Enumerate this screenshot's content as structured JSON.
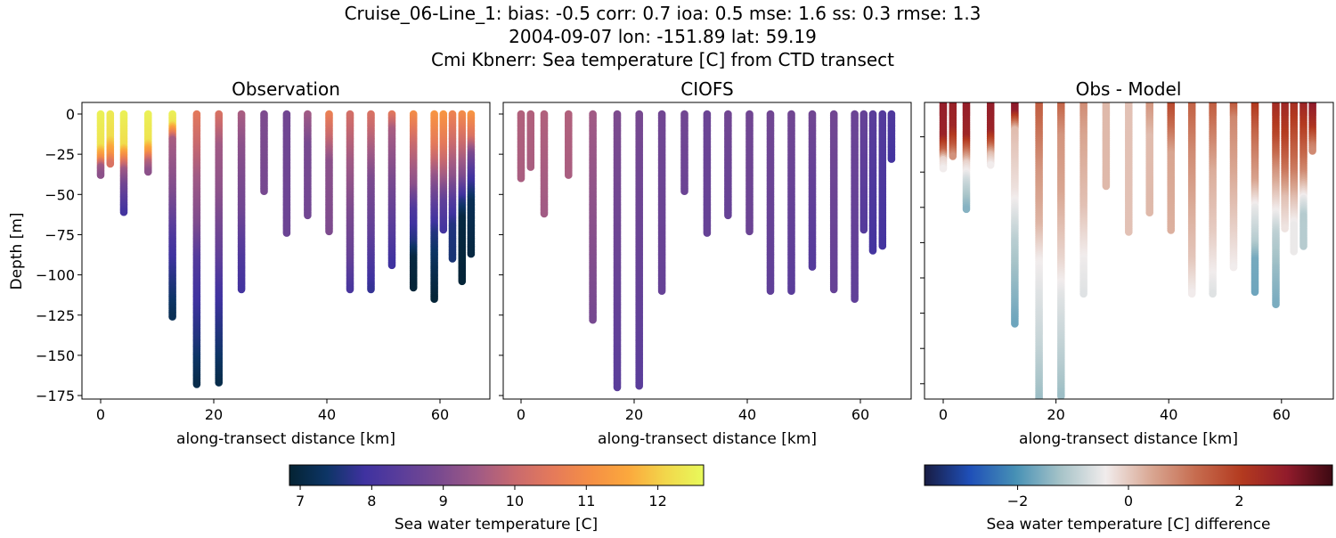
{
  "title_lines": [
    "Cruise_06-Line_1: bias: -0.5  corr: 0.7  ioa: 0.5  mse: 1.6  ss: 0.3  rmse: 1.3",
    "2004-09-07 lon: -151.89 lat: 59.19",
    "Cmi Kbnerr: Sea temperature [C] from CTD transect"
  ],
  "chart_data": [
    {
      "type": "scatter",
      "title": "Observation",
      "xlabel": "along-transect distance [km]",
      "ylabel": "Depth [m]",
      "xticks": [
        "0",
        "20",
        "40",
        "60"
      ],
      "yticks": [
        "0",
        "−25",
        "−50",
        "−75",
        "−100",
        "−125",
        "−150",
        "−175"
      ],
      "ylim": [
        -178,
        7
      ],
      "colormap": "thermal",
      "casts": [
        {
          "km": 0.0,
          "depth": 38,
          "profile": [
            [
              0,
              12.5
            ],
            [
              20,
              12.3
            ],
            [
              28,
              11
            ],
            [
              33,
              9.5
            ],
            [
              38,
              9.2
            ]
          ]
        },
        {
          "km": 1.7,
          "depth": 31,
          "profile": [
            [
              0,
              12.4
            ],
            [
              15,
              12.2
            ],
            [
              25,
              11.2
            ],
            [
              31,
              10.3
            ]
          ]
        },
        {
          "km": 4.1,
          "depth": 61,
          "profile": [
            [
              0,
              12.5
            ],
            [
              20,
              12.2
            ],
            [
              27,
              11
            ],
            [
              35,
              9.5
            ],
            [
              45,
              8.8
            ],
            [
              61,
              8.0
            ]
          ]
        },
        {
          "km": 8.4,
          "depth": 36,
          "profile": [
            [
              0,
              12.5
            ],
            [
              17,
              12.3
            ],
            [
              24,
              11.2
            ],
            [
              30,
              9.8
            ],
            [
              36,
              9.2
            ]
          ]
        },
        {
          "km": 12.7,
          "depth": 126,
          "profile": [
            [
              0,
              12.5
            ],
            [
              6,
              12.3
            ],
            [
              11,
              11
            ],
            [
              16,
              9.6
            ],
            [
              50,
              9.0
            ],
            [
              80,
              8.1
            ],
            [
              100,
              7.7
            ],
            [
              126,
              7.2
            ]
          ]
        },
        {
          "km": 17.0,
          "depth": 168,
          "profile": [
            [
              0,
              10.5
            ],
            [
              20,
              10
            ],
            [
              40,
              9.5
            ],
            [
              70,
              9
            ],
            [
              90,
              8.3
            ],
            [
              110,
              8
            ],
            [
              140,
              7.6
            ],
            [
              168,
              7.1
            ]
          ]
        },
        {
          "km": 20.9,
          "depth": 167,
          "profile": [
            [
              0,
              10.3
            ],
            [
              20,
              9.5
            ],
            [
              50,
              9.2
            ],
            [
              90,
              8.5
            ],
            [
              110,
              8.0
            ],
            [
              150,
              7.4
            ],
            [
              167,
              7.1
            ]
          ]
        },
        {
          "km": 24.9,
          "depth": 109,
          "profile": [
            [
              0,
              9.6
            ],
            [
              20,
              9.2
            ],
            [
              60,
              8.8
            ],
            [
              90,
              8.2
            ],
            [
              109,
              8.0
            ]
          ]
        },
        {
          "km": 28.9,
          "depth": 48,
          "profile": [
            [
              0,
              9.0
            ],
            [
              48,
              8.9
            ]
          ]
        },
        {
          "km": 32.9,
          "depth": 74,
          "profile": [
            [
              0,
              8.8
            ],
            [
              74,
              8.7
            ]
          ]
        },
        {
          "km": 36.6,
          "depth": 63,
          "profile": [
            [
              0,
              9.5
            ],
            [
              20,
              8.9
            ],
            [
              63,
              8.8
            ]
          ]
        },
        {
          "km": 40.4,
          "depth": 73,
          "profile": [
            [
              0,
              10.7
            ],
            [
              15,
              10.0
            ],
            [
              30,
              9.2
            ],
            [
              73,
              9.0
            ]
          ]
        },
        {
          "km": 44.1,
          "depth": 109,
          "profile": [
            [
              0,
              10.2
            ],
            [
              30,
              9.5
            ],
            [
              60,
              9.0
            ],
            [
              90,
              8.6
            ],
            [
              109,
              8.1
            ]
          ]
        },
        {
          "km": 47.8,
          "depth": 109,
          "profile": [
            [
              0,
              10.3
            ],
            [
              15,
              9.8
            ],
            [
              40,
              9.0
            ],
            [
              75,
              8.5
            ],
            [
              109,
              7.8
            ]
          ]
        },
        {
          "km": 51.5,
          "depth": 94,
          "profile": [
            [
              0,
              10.5
            ],
            [
              10,
              9.6
            ],
            [
              40,
              9.0
            ],
            [
              75,
              8.3
            ],
            [
              94,
              7.9
            ]
          ]
        },
        {
          "km": 55.3,
          "depth": 108,
          "profile": [
            [
              0,
              11
            ],
            [
              20,
              10
            ],
            [
              45,
              9.2
            ],
            [
              60,
              8.2
            ],
            [
              80,
              7.6
            ],
            [
              90,
              7.0
            ],
            [
              108,
              6.9
            ]
          ]
        },
        {
          "km": 59.0,
          "depth": 115,
          "profile": [
            [
              0,
              11.2
            ],
            [
              20,
              10.5
            ],
            [
              40,
              9.3
            ],
            [
              60,
              8.3
            ],
            [
              75,
              7.6
            ],
            [
              95,
              7.2
            ],
            [
              115,
              6.9
            ]
          ]
        },
        {
          "km": 60.6,
          "depth": 72,
          "profile": [
            [
              0,
              11.2
            ],
            [
              20,
              10.5
            ],
            [
              40,
              9.5
            ],
            [
              55,
              8.5
            ],
            [
              72,
              8.0
            ]
          ]
        },
        {
          "km": 62.2,
          "depth": 90,
          "profile": [
            [
              0,
              10.8
            ],
            [
              20,
              10
            ],
            [
              40,
              9.2
            ],
            [
              55,
              8.3
            ],
            [
              70,
              7.6
            ],
            [
              90,
              7.5
            ]
          ]
        },
        {
          "km": 63.9,
          "depth": 104,
          "profile": [
            [
              0,
              11
            ],
            [
              20,
              10
            ],
            [
              40,
              9
            ],
            [
              55,
              7.6
            ],
            [
              65,
              7.0
            ],
            [
              104,
              6.9
            ]
          ]
        },
        {
          "km": 65.5,
          "depth": 87,
          "profile": [
            [
              0,
              11.2
            ],
            [
              15,
              10.3
            ],
            [
              25,
              9.0
            ],
            [
              40,
              8
            ],
            [
              55,
              7.2
            ],
            [
              87,
              7.0
            ]
          ]
        }
      ]
    },
    {
      "type": "scatter",
      "title": "CIOFS",
      "xlabel": "along-transect distance [km]",
      "xticks": [
        "0",
        "20",
        "40",
        "60"
      ],
      "ylim": [
        -178,
        7
      ],
      "colormap": "thermal",
      "casts": [
        {
          "km": 0.0,
          "depth": 40,
          "profile": [
            [
              0,
              9.7
            ],
            [
              40,
              9.6
            ]
          ]
        },
        {
          "km": 1.7,
          "depth": 33,
          "profile": [
            [
              0,
              9.7
            ],
            [
              33,
              9.6
            ]
          ]
        },
        {
          "km": 4.1,
          "depth": 62,
          "profile": [
            [
              0,
              9.7
            ],
            [
              62,
              9.5
            ]
          ]
        },
        {
          "km": 8.4,
          "depth": 38,
          "profile": [
            [
              0,
              9.7
            ],
            [
              38,
              9.6
            ]
          ]
        },
        {
          "km": 12.7,
          "depth": 128,
          "profile": [
            [
              0,
              9.5
            ],
            [
              128,
              8.9
            ]
          ]
        },
        {
          "km": 17.0,
          "depth": 170,
          "profile": [
            [
              0,
              9.0
            ],
            [
              170,
              8.4
            ]
          ]
        },
        {
          "km": 20.9,
          "depth": 169,
          "profile": [
            [
              0,
              8.9
            ],
            [
              169,
              8.4
            ]
          ]
        },
        {
          "km": 24.9,
          "depth": 110,
          "profile": [
            [
              0,
              8.8
            ],
            [
              110,
              8.6
            ]
          ]
        },
        {
          "km": 28.9,
          "depth": 48,
          "profile": [
            [
              0,
              8.8
            ],
            [
              48,
              8.7
            ]
          ]
        },
        {
          "km": 32.9,
          "depth": 74,
          "profile": [
            [
              0,
              8.7
            ],
            [
              74,
              8.6
            ]
          ]
        },
        {
          "km": 36.6,
          "depth": 63,
          "profile": [
            [
              0,
              8.8
            ],
            [
              63,
              8.6
            ]
          ]
        },
        {
          "km": 40.4,
          "depth": 73,
          "profile": [
            [
              0,
              8.8
            ],
            [
              73,
              8.7
            ]
          ]
        },
        {
          "km": 44.1,
          "depth": 110,
          "profile": [
            [
              0,
              8.8
            ],
            [
              110,
              8.5
            ]
          ]
        },
        {
          "km": 47.8,
          "depth": 110,
          "profile": [
            [
              0,
              8.8
            ],
            [
              110,
              8.4
            ]
          ]
        },
        {
          "km": 51.5,
          "depth": 95,
          "profile": [
            [
              0,
              8.8
            ],
            [
              95,
              8.3
            ]
          ]
        },
        {
          "km": 55.3,
          "depth": 109,
          "profile": [
            [
              0,
              8.8
            ],
            [
              109,
              8.6
            ]
          ]
        },
        {
          "km": 59.0,
          "depth": 115,
          "profile": [
            [
              0,
              8.7
            ],
            [
              115,
              8.5
            ]
          ]
        },
        {
          "km": 60.6,
          "depth": 72,
          "profile": [
            [
              0,
              8.6
            ],
            [
              72,
              8.3
            ]
          ]
        },
        {
          "km": 62.2,
          "depth": 85,
          "profile": [
            [
              0,
              8.4
            ],
            [
              85,
              8.0
            ]
          ]
        },
        {
          "km": 63.9,
          "depth": 82,
          "profile": [
            [
              0,
              8.3
            ],
            [
              82,
              8.0
            ]
          ]
        },
        {
          "km": 65.5,
          "depth": 28,
          "profile": [
            [
              0,
              8.2
            ],
            [
              28,
              8.0
            ]
          ]
        }
      ]
    },
    {
      "type": "scatter",
      "title": "Obs - Model",
      "xlabel": "along-transect distance [km]",
      "xticks": [
        "0",
        "20",
        "40",
        "60"
      ],
      "ylim": [
        -169,
        0.5
      ],
      "colormap": "balance",
      "derived_from": "Observation minus CIOFS"
    }
  ],
  "colorbars": [
    {
      "label": "Sea water temperature [C]",
      "range": [
        6.85,
        12.64
      ],
      "ticks": [
        "7",
        "8",
        "9",
        "10",
        "11",
        "12"
      ],
      "colormap": "thermal"
    },
    {
      "label": "Sea water temperature [C] difference",
      "range": [
        -3.68,
        3.68
      ],
      "ticks": [
        "−2",
        "0",
        "2"
      ],
      "colormap": "balance"
    }
  ],
  "colors": {
    "thermal": [
      "#042333",
      "#0d3566",
      "#3f32a0",
      "#5c3e9a",
      "#7a4a8f",
      "#a05a85",
      "#c96a6e",
      "#e57a5a",
      "#f58f45",
      "#fba83d",
      "#f2d74b",
      "#e8fa5b"
    ],
    "balance": [
      "#181c43",
      "#1f4fb8",
      "#4690b5",
      "#a6c3c8",
      "#f1ecec",
      "#d9a793",
      "#c66b4e",
      "#b33a1f",
      "#911b2b",
      "#3c0912"
    ]
  }
}
